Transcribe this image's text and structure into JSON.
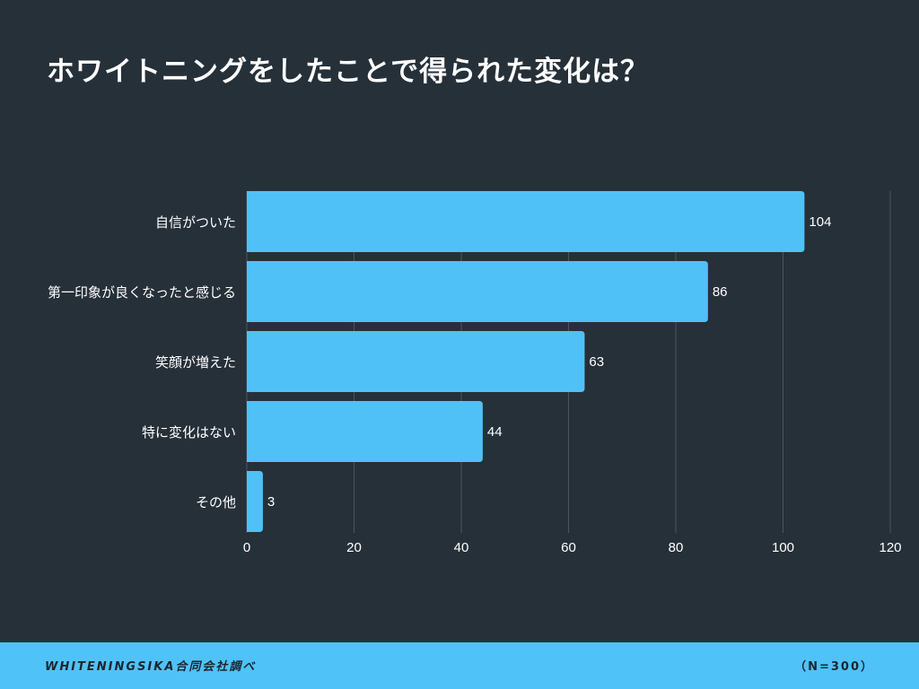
{
  "chart_data": {
    "type": "bar",
    "orientation": "horizontal",
    "title": "ホワイトニングをしたことで得られた変化は？",
    "categories": [
      "自信がついた",
      "第一印象が良くなったと感じる",
      "笑顔が増えた",
      "特に変化はない",
      "その他"
    ],
    "values": [
      104,
      86,
      63,
      44,
      3
    ],
    "xlim": [
      0,
      120
    ],
    "xticks": [
      0,
      20,
      40,
      60,
      80,
      100,
      120
    ],
    "grid": true,
    "data_labels": true,
    "colors": {
      "bar": "#4fc1f7",
      "background": "#263038",
      "grid": "#4a555e"
    }
  },
  "footer": {
    "source": "WHITENINGSIKA合同会社調べ",
    "sample": "（N=300）"
  }
}
